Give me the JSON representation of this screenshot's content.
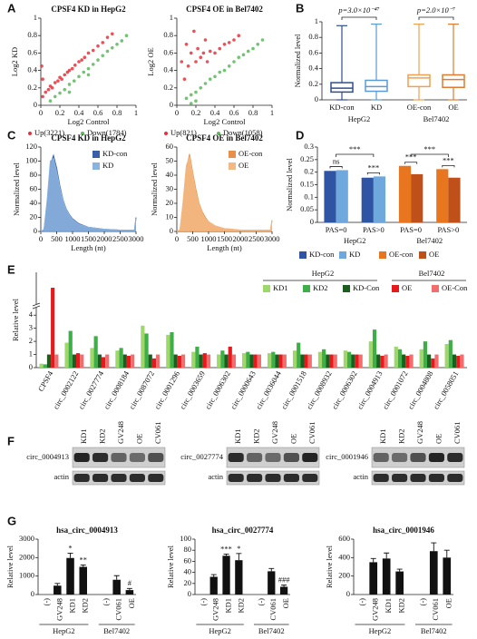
{
  "panel_labels": [
    "A",
    "B",
    "C",
    "D",
    "E",
    "F",
    "G"
  ],
  "chart_data": [
    {
      "type": "scatter",
      "title": "CPSF4 KD in HepG2",
      "xlabel": "Log2 Control",
      "ylabel": "Log2 KD",
      "xlim": [
        0,
        1
      ],
      "ylim": [
        0,
        1
      ],
      "xticks": [
        0,
        0.2,
        0.4,
        0.6,
        0.8,
        1
      ],
      "yticks": [
        0,
        0.2,
        0.4,
        0.6,
        0.8,
        1
      ],
      "series": [
        {
          "name": "Up(3221)",
          "color": "#e8303a",
          "x": [
            0.02,
            0.05,
            0.08,
            0.1,
            0.12,
            0.15,
            0.18,
            0.2,
            0.22,
            0.25,
            0.28,
            0.3,
            0.33,
            0.36,
            0.4,
            0.43,
            0.46,
            0.5,
            0.55,
            0.6,
            0.65,
            0.7,
            0.75,
            0.02,
            0.01
          ],
          "values": [
            0.1,
            0.15,
            0.18,
            0.22,
            0.2,
            0.26,
            0.28,
            0.32,
            0.3,
            0.35,
            0.38,
            0.4,
            0.42,
            0.46,
            0.5,
            0.52,
            0.55,
            0.6,
            0.63,
            0.68,
            0.72,
            0.78,
            0.82,
            0.3,
            0.45
          ]
        },
        {
          "name": "Down(1784)",
          "color": "#5cb85c",
          "x": [
            0.1,
            0.15,
            0.2,
            0.25,
            0.3,
            0.35,
            0.4,
            0.45,
            0.5,
            0.55,
            0.6,
            0.65,
            0.7,
            0.75,
            0.8,
            0.85,
            0.9,
            0.3,
            0.5
          ],
          "values": [
            0.05,
            0.1,
            0.14,
            0.18,
            0.24,
            0.28,
            0.33,
            0.38,
            0.42,
            0.47,
            0.52,
            0.57,
            0.62,
            0.66,
            0.7,
            0.74,
            0.8,
            0.15,
            0.35
          ]
        }
      ]
    },
    {
      "type": "scatter",
      "title": "CPSF4 OE in Bel7402",
      "xlabel": "Log2 Control",
      "ylabel": "Log2 OE",
      "xlim": [
        0,
        1
      ],
      "ylim": [
        0,
        1
      ],
      "xticks": [
        0,
        0.2,
        0.4,
        0.6,
        0.8,
        1
      ],
      "yticks": [
        0,
        0.2,
        0.4,
        0.6,
        0.8,
        1
      ],
      "series": [
        {
          "name": "Up(821)",
          "color": "#e8303a",
          "x": [
            0.05,
            0.08,
            0.1,
            0.12,
            0.15,
            0.18,
            0.2,
            0.22,
            0.25,
            0.28,
            0.3,
            0.32,
            0.35,
            0.4,
            0.45,
            0.5,
            0.55,
            0.6,
            0.65
          ],
          "values": [
            0.5,
            0.3,
            0.7,
            0.45,
            0.6,
            0.85,
            0.5,
            0.65,
            0.55,
            0.6,
            0.75,
            0.5,
            0.62,
            0.6,
            0.65,
            0.7,
            0.72,
            0.75,
            0.8
          ]
        },
        {
          "name": "Down(1058)",
          "color": "#5cb85c",
          "x": [
            0.1,
            0.15,
            0.2,
            0.25,
            0.3,
            0.35,
            0.4,
            0.45,
            0.5,
            0.55,
            0.6,
            0.65,
            0.7,
            0.75,
            0.8,
            0.85,
            0.9,
            0.15,
            0.2
          ],
          "values": [
            0.08,
            0.12,
            0.15,
            0.2,
            0.25,
            0.3,
            0.33,
            0.38,
            0.4,
            0.45,
            0.5,
            0.55,
            0.58,
            0.62,
            0.65,
            0.7,
            0.75,
            0.02,
            0.05
          ]
        }
      ]
    },
    {
      "type": "box",
      "ylabel": "Normalized level",
      "ylim": [
        0,
        1
      ],
      "yticks": [
        0,
        0.2,
        0.4,
        0.6,
        0.8,
        1
      ],
      "groups": [
        {
          "label": "HepG2",
          "p": "p=3.0×10⁻⁴⁷",
          "categories": [
            "KD-con",
            "KD"
          ],
          "colors": [
            "#2f4e8e",
            "#5b9bd5"
          ],
          "boxes": [
            {
              "min": 0,
              "q1": 0.1,
              "median": 0.15,
              "q3": 0.22,
              "max": 0.95
            },
            {
              "min": 0,
              "q1": 0.11,
              "median": 0.17,
              "q3": 0.25,
              "max": 0.97
            }
          ]
        },
        {
          "label": "Bel7402",
          "p": "p=2.0×10⁻⁷",
          "categories": [
            "OE-con",
            "OE"
          ],
          "colors": [
            "#f0a050",
            "#e07b30"
          ],
          "boxes": [
            {
              "min": 0,
              "q1": 0.17,
              "median": 0.28,
              "q3": 0.32,
              "max": 0.97
            },
            {
              "min": 0,
              "q1": 0.16,
              "median": 0.26,
              "q3": 0.32,
              "max": 0.97
            }
          ]
        }
      ]
    },
    {
      "type": "area",
      "title": "CPSF4 KD in HepG2",
      "xlabel": "Length (nt)",
      "ylabel": "Normalized level",
      "xlim": [
        0,
        3000
      ],
      "ylim": [
        0,
        120
      ],
      "xticks": [
        0,
        500,
        1000,
        1500,
        2000,
        2500,
        3000
      ],
      "yticks": [
        0,
        20,
        40,
        60,
        80,
        100,
        120
      ],
      "series": [
        {
          "name": "KD-con",
          "color": "#3a5ea8",
          "x": [
            0,
            100,
            200,
            300,
            400,
            500,
            600,
            700,
            800,
            900,
            1000,
            1200,
            1500,
            2000,
            2500,
            2950,
            3000
          ],
          "values": [
            0,
            2,
            40,
            95,
            108,
            90,
            65,
            45,
            32,
            24,
            18,
            11,
            6,
            3,
            2,
            2,
            20
          ]
        },
        {
          "name": "KD",
          "color": "#8ab4e0",
          "x": [
            0,
            100,
            200,
            300,
            400,
            500,
            600,
            700,
            800,
            900,
            1000,
            1200,
            1500,
            2000,
            2500,
            2950,
            3000
          ],
          "values": [
            0,
            3,
            45,
            100,
            104,
            85,
            62,
            44,
            31,
            23,
            17,
            10,
            6,
            3,
            2,
            2,
            18
          ]
        }
      ]
    },
    {
      "type": "area",
      "title": "CPSF4 OE in Bel7402",
      "xlabel": "Length (nt)",
      "ylabel": "Normalized level",
      "xlim": [
        0,
        3000
      ],
      "ylim": [
        0,
        60
      ],
      "xticks": [
        0,
        500,
        1000,
        1500,
        2000,
        2500,
        3000
      ],
      "yticks": [
        0,
        10,
        20,
        30,
        40,
        50,
        60
      ],
      "series": [
        {
          "name": "OE-con",
          "color": "#e8904a",
          "x": [
            0,
            100,
            200,
            300,
            400,
            500,
            600,
            700,
            800,
            900,
            1000,
            1200,
            1500,
            2000,
            2500,
            2950,
            3000
          ],
          "values": [
            0,
            1,
            20,
            45,
            55,
            42,
            30,
            20,
            14,
            10,
            7,
            4,
            2,
            1,
            1,
            1,
            8
          ]
        },
        {
          "name": "OE",
          "color": "#f4b880",
          "x": [
            0,
            100,
            200,
            300,
            400,
            500,
            600,
            700,
            800,
            900,
            1000,
            1200,
            1500,
            2000,
            2500,
            2950,
            3000
          ],
          "values": [
            0,
            1,
            22,
            47,
            53,
            40,
            28,
            19,
            13,
            9,
            7,
            4,
            2,
            1,
            1,
            1,
            7
          ]
        }
      ]
    },
    {
      "type": "groupedbar",
      "ylabel": "Normalized level",
      "ylim": [
        0,
        0.3
      ],
      "yticks": [
        0,
        0.05,
        0.1,
        0.15,
        0.2,
        0.25,
        0.3
      ],
      "groups": [
        {
          "label": "HepG2",
          "categories": [
            "PAS=0",
            "PAS>0"
          ],
          "significance": [
            "ns",
            "***"
          ],
          "between": "***",
          "series": [
            {
              "name": "KD-con",
              "color": "#2e54a3",
              "values": [
                0.205,
                0.178
              ]
            },
            {
              "name": "KD",
              "color": "#6fa8dc",
              "values": [
                0.208,
                0.183
              ]
            }
          ]
        },
        {
          "label": "Bel7402",
          "categories": [
            "PAS=0",
            "PAS>0"
          ],
          "significance": [
            "***",
            "***"
          ],
          "between": "***",
          "series": [
            {
              "name": "OE-con",
              "color": "#e8761f",
              "values": [
                0.225,
                0.212
              ]
            },
            {
              "name": "OE",
              "color": "#c0501a",
              "values": [
                0.192,
                0.178
              ]
            }
          ]
        }
      ]
    },
    {
      "type": "bar",
      "ylabel": "Relative level",
      "ylim": [
        0,
        40
      ],
      "ybreak": [
        4.5,
        20
      ],
      "yticks": [
        0,
        1,
        2,
        3,
        4
      ],
      "categories": [
        "CPSF4",
        "circ_0002122",
        "circ_0027774",
        "circ_0008184",
        "circ_0087072",
        "circ_0001296",
        "circ_0003659",
        "circ_0006302",
        "circ_0000643",
        "circ_0036044",
        "circ_0001518",
        "circ_0008932",
        "circ_0006302",
        "circ_0004913",
        "circ_0001072",
        "circ_0004808",
        "circ_0058051"
      ],
      "series_groups": [
        {
          "label": "HepG2",
          "series": [
            {
              "name": "KD1",
              "color": "#9ed86a",
              "values": [
                0.3,
                1.9,
                1.5,
                1.3,
                3.2,
                2.5,
                1.2,
                1.0,
                1.1,
                1.1,
                1.3,
                1.2,
                1.3,
                2.0,
                1.6,
                1.4,
                1.8
              ]
            },
            {
              "name": "KD2",
              "color": "#3fae49",
              "values": [
                0.25,
                2.8,
                2.4,
                1.5,
                2.6,
                2.7,
                1.6,
                1.3,
                1.2,
                1.2,
                1.9,
                1.4,
                1.2,
                2.9,
                1.4,
                2.0,
                2.1
              ]
            },
            {
              "name": "KD-Con",
              "color": "#1b5e20",
              "values": [
                1,
                1,
                1,
                1,
                1,
                1,
                1,
                1,
                1,
                1,
                1,
                1,
                1,
                1,
                1,
                1,
                1
              ]
            }
          ]
        },
        {
          "label": "Bel7402",
          "series": [
            {
              "name": "OE",
              "color": "#e41a1c",
              "values": [
                30,
                1.1,
                0.8,
                0.9,
                0.7,
                0.9,
                1.1,
                1.6,
                1.0,
                1.0,
                1.0,
                1.0,
                1.0,
                0.9,
                0.9,
                0.7,
                0.9
              ]
            },
            {
              "name": "OE-Con",
              "color": "#f26d6d",
              "values": [
                1,
                1,
                1,
                1,
                1,
                1,
                1,
                1,
                1,
                1,
                1,
                1,
                1,
                1,
                1,
                1,
                1
              ]
            }
          ]
        }
      ]
    },
    {
      "type": "column",
      "title": "hsa_circ_0004913",
      "ylabel": "Relative level",
      "ylim": [
        0,
        3000
      ],
      "yticks": [
        0,
        1000,
        2000,
        3000
      ],
      "groups": [
        {
          "label": "HepG2",
          "categories": [
            "(-)",
            "GV248",
            "KD1",
            "KD2"
          ],
          "values": [
            null,
            480,
            1980,
            1500
          ],
          "errors": [
            null,
            120,
            260,
            100
          ],
          "marks": [
            null,
            null,
            "*",
            "**"
          ]
        },
        {
          "label": "Bel7402",
          "categories": [
            "(-)",
            "CV061",
            "OE"
          ],
          "values": [
            null,
            800,
            240
          ],
          "errors": [
            null,
            220,
            90
          ],
          "marks": [
            null,
            null,
            "#"
          ]
        }
      ]
    },
    {
      "type": "column",
      "title": "hsa_circ_0027774",
      "ylabel": "Relative level",
      "ylim": [
        0,
        100
      ],
      "yticks": [
        0,
        20,
        40,
        60,
        80,
        100
      ],
      "groups": [
        {
          "label": "HepG2",
          "categories": [
            "(-)",
            "GV248",
            "KD1",
            "KD2"
          ],
          "values": [
            null,
            32,
            70,
            62
          ],
          "errors": [
            null,
            4,
            3,
            12
          ],
          "marks": [
            null,
            null,
            "***",
            "*"
          ]
        },
        {
          "label": "Bel7402",
          "categories": [
            "(-)",
            "CV061",
            "OE"
          ],
          "values": [
            null,
            42,
            14
          ],
          "errors": [
            null,
            5,
            3
          ],
          "marks": [
            null,
            null,
            "###"
          ]
        }
      ]
    },
    {
      "type": "column",
      "title": "hsa_circ_0001946",
      "ylabel": "Relative level",
      "ylim": [
        0,
        600
      ],
      "yticks": [
        0,
        200,
        400,
        600
      ],
      "groups": [
        {
          "label": "HepG2",
          "categories": [
            "(-)",
            "GV248",
            "KD1",
            "KD2"
          ],
          "values": [
            null,
            350,
            390,
            250
          ],
          "errors": [
            null,
            40,
            60,
            25
          ]
        },
        {
          "label": "Bel7402",
          "categories": [
            "(-)",
            "CV061",
            "OE"
          ],
          "values": [
            null,
            470,
            400
          ],
          "errors": [
            null,
            90,
            80
          ]
        }
      ]
    }
  ],
  "blots": [
    {
      "target": "circ_0004913",
      "control": "actin",
      "lanes": [
        "KD1",
        "KD2",
        "GV248",
        "OE",
        "CV061"
      ]
    },
    {
      "target": "circ_0027774",
      "control": "actin",
      "lanes": [
        "KD1",
        "KD2",
        "GV248",
        "OE",
        "CV061"
      ]
    },
    {
      "target": "circ_0001946",
      "control": "actin",
      "lanes": [
        "KD1",
        "KD2",
        "GV248",
        "OE",
        "CV061"
      ]
    }
  ]
}
